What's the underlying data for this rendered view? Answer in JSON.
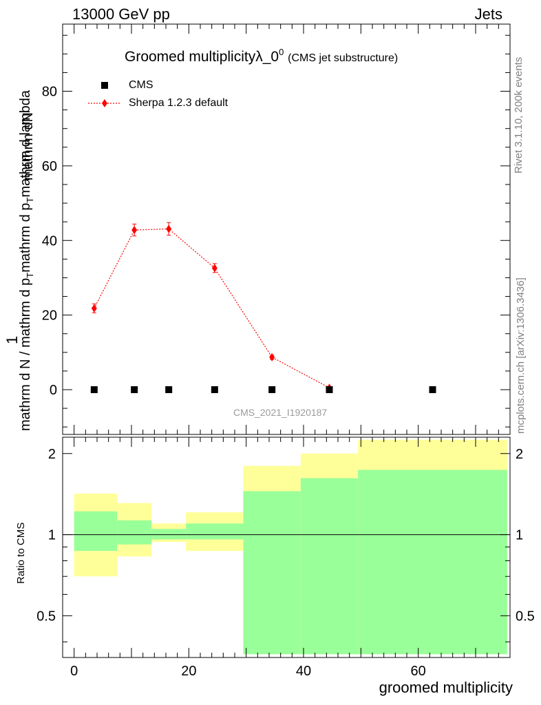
{
  "header": {
    "left": "13000 GeV pp",
    "right": "Jets"
  },
  "title": {
    "main": "Groomed multiplicityλ_0",
    "sup": "0",
    "paren": "(CMS jet substructure)"
  },
  "side_labels": {
    "rivet": "Rivet 3.1.10,  200k events",
    "mcplots": "mcplots.cern.ch [arXiv:1306.3436]"
  },
  "watermark": "CMS_2021_I1920187",
  "y_axis": {
    "numerator": "mathrm dN",
    "denominator_a": "mathrm d p",
    "denominator_sub": "T",
    "denominator_b": "mathrm d lambda",
    "bottom_a": "mathrm d N / mathrm d p",
    "bottom_sub": "T",
    "bottom_b": "mathrm d N",
    "one": "1"
  },
  "ratio_ylabel": "Ratio to CMS",
  "xlabel": "groomed multiplicity",
  "legend": {
    "cms": "CMS",
    "sherpa": "Sherpa 1.2.3 default"
  },
  "colors": {
    "sherpa": "#ff0000",
    "cms": "#000000",
    "band_outer": "#ffff99",
    "band_inner": "#99ff99"
  },
  "chart_data": [
    {
      "type": "scatter",
      "panel": "main",
      "xlim": [
        -2,
        76
      ],
      "ylim": [
        -12,
        98
      ],
      "yticks": [
        0,
        20,
        40,
        60,
        80
      ],
      "xticks": [
        0,
        20,
        40,
        60
      ],
      "series": [
        {
          "name": "CMS",
          "x": [
            3.5,
            10.5,
            16.5,
            24.5,
            34.5,
            44.5,
            62.5
          ],
          "y": [
            0,
            0,
            0,
            0,
            0,
            0,
            0
          ]
        },
        {
          "name": "Sherpa 1.2.3 default",
          "x": [
            3.5,
            10.5,
            16.5,
            24.5,
            34.5,
            44.5
          ],
          "y": [
            21.8,
            42.8,
            43.1,
            32.6,
            8.7,
            0.5
          ],
          "yerr": [
            1.2,
            1.6,
            1.7,
            1.2,
            0.6,
            0.2
          ]
        }
      ]
    },
    {
      "type": "area",
      "panel": "ratio",
      "ylabel": "Ratio to CMS",
      "ylim": [
        0.35,
        2.3
      ],
      "log_y": true,
      "yticks": [
        0.5,
        1,
        2
      ],
      "bins": [
        [
          0,
          7.5
        ],
        [
          7.5,
          13.5
        ],
        [
          13.5,
          19.5
        ],
        [
          19.5,
          29.5
        ],
        [
          29.5,
          39.5
        ],
        [
          39.5,
          49.5
        ],
        [
          49.5,
          75.5
        ]
      ],
      "outer_band": [
        [
          0.7,
          1.42
        ],
        [
          0.83,
          1.31
        ],
        [
          0.94,
          1.1
        ],
        [
          0.87,
          1.21
        ],
        [
          0.36,
          1.8
        ],
        [
          0.36,
          2.0
        ],
        [
          0.36,
          2.25
        ]
      ],
      "inner_band": [
        [
          0.87,
          1.22
        ],
        [
          0.92,
          1.13
        ],
        [
          0.96,
          1.05
        ],
        [
          0.96,
          1.1
        ],
        [
          0.36,
          1.45
        ],
        [
          0.36,
          1.62
        ],
        [
          0.36,
          1.74
        ]
      ],
      "reference": 1
    }
  ]
}
